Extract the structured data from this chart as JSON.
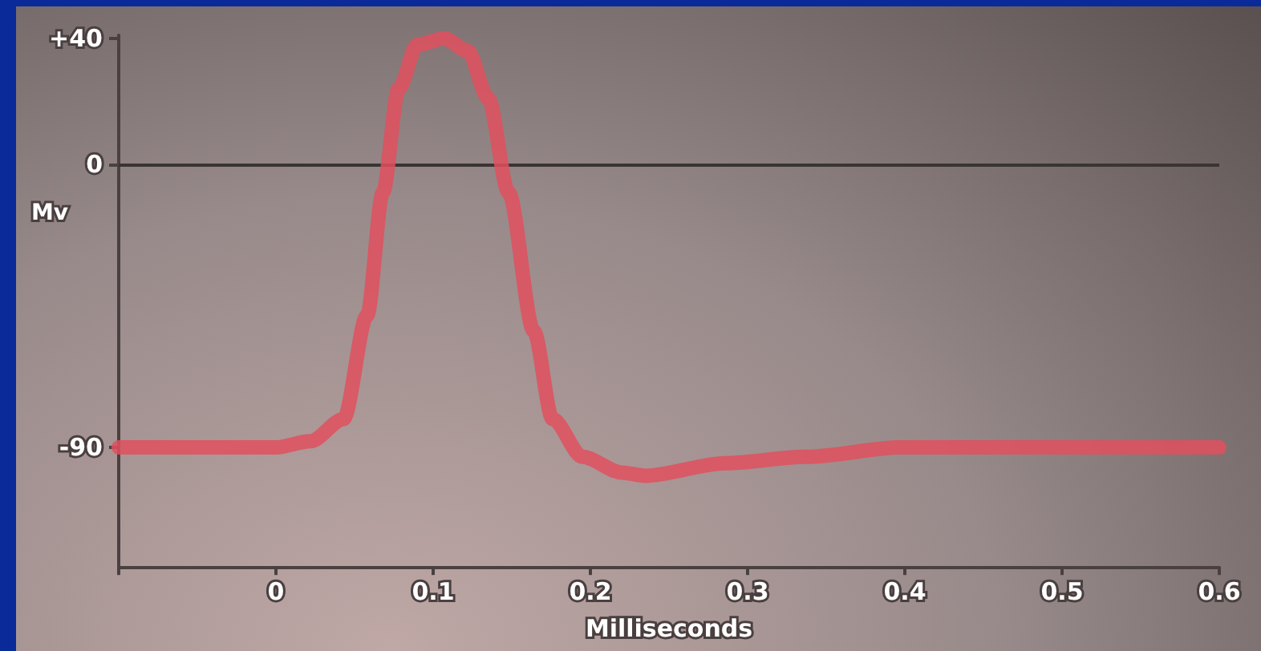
{
  "chart_data": {
    "type": "line",
    "xlabel": "Milliseconds",
    "ylabel": "Mv",
    "x": [
      -0.1,
      0,
      0.022,
      0.043,
      0.058,
      0.068,
      0.078,
      0.09,
      0.107,
      0.122,
      0.135,
      0.148,
      0.164,
      0.176,
      0.195,
      0.22,
      0.235,
      0.286,
      0.337,
      0.398,
      0.489,
      0.6
    ],
    "series": [
      {
        "color": "#e0505e",
        "values": [
          -90,
          -90,
          -88,
          -81,
          -48,
          -9,
          24,
          38,
          40,
          36,
          21,
          -9,
          -53,
          -81,
          -93,
          -98,
          -99,
          -95,
          -93,
          -90,
          -90,
          -90
        ]
      }
    ],
    "xlim": [
      -0.1,
      0.6
    ],
    "xticks": [
      {
        "value": -0.1,
        "label": null
      },
      0,
      0.1,
      0.2,
      0.3,
      0.4,
      0.5,
      0.6
    ],
    "ylim": [
      -128,
      41
    ],
    "yticks": [
      {
        "value": 40,
        "label": "+40"
      },
      0,
      -90
    ],
    "ref_lines": [
      {
        "axis": "y",
        "value": 0,
        "color": "#3a3434"
      }
    ],
    "marker": "none",
    "line_style": "solid"
  }
}
